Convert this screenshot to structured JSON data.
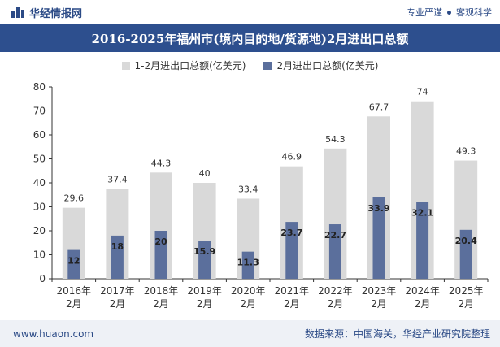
{
  "header": {
    "brand": "华经情报网",
    "tagline_left": "专业严谨",
    "tagline_right": "客观科学"
  },
  "footer": {
    "url": "www.huaon.com",
    "source": "数据来源：中国海关，华经产业研究院整理"
  },
  "colors": {
    "series1": "#d9d9d9",
    "series2": "#5b6f9c",
    "title_bg": "#2d4f8e"
  },
  "chart_data": {
    "type": "bar",
    "title": "2016-2025年福州市(境内目的地/货源地)2月进出口总额",
    "categories": [
      "2016年\n2月",
      "2017年\n2月",
      "2018年\n2月",
      "2019年\n2月",
      "2020年\n2月",
      "2021年\n2月",
      "2022年\n2月",
      "2023年\n2月",
      "2024年\n2月",
      "2025年\n2月"
    ],
    "series": [
      {
        "name": "1-2月进出口总额(亿美元)",
        "values": [
          29.6,
          37.4,
          44.3,
          40,
          33.4,
          46.9,
          54.3,
          67.7,
          74,
          49.3
        ]
      },
      {
        "name": "2月进出口总额(亿美元)",
        "values": [
          12,
          18,
          20,
          15.9,
          11.3,
          23.7,
          22.7,
          33.9,
          32.1,
          20.4
        ]
      }
    ],
    "ylim": [
      0,
      80
    ],
    "yticks": [
      0,
      10,
      20,
      30,
      40,
      50,
      60,
      70,
      80
    ],
    "legend_position": "top",
    "grid": false
  }
}
